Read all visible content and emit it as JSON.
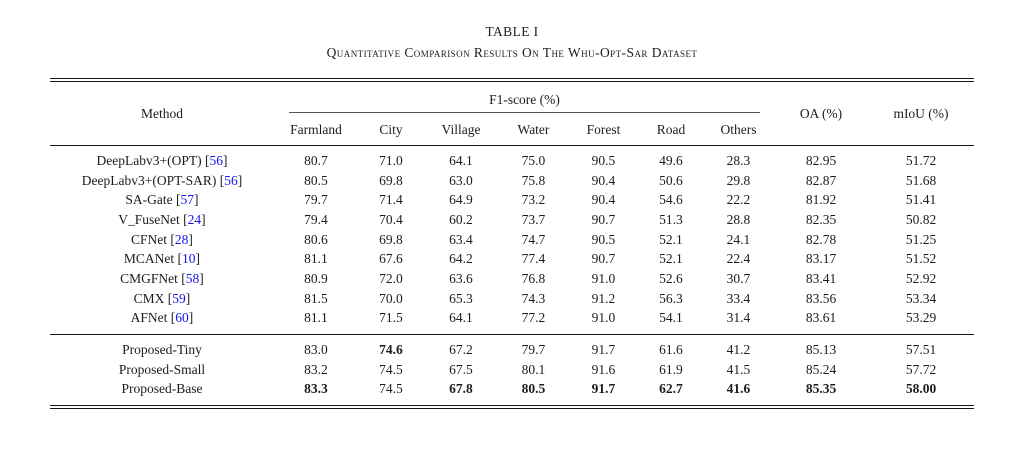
{
  "caption": {
    "number": "TABLE I",
    "title": "Quantitative Comparison Results On The Whu-Opt-Sar Dataset"
  },
  "colors": {
    "text": "#1c1c1c",
    "citation_link": "#1515ef",
    "rule": "#161616"
  },
  "columns": {
    "method": "Method",
    "f1_group": "F1-score (%)",
    "f1_subcolumns": [
      "Farmland",
      "City",
      "Village",
      "Water",
      "Forest",
      "Road",
      "Others"
    ],
    "oa": "OA (%)",
    "miou": "mIoU (%)"
  },
  "groups": [
    {
      "name": "baselines",
      "rows": [
        {
          "method": "DeepLabv3+(OPT)",
          "citation": "56",
          "values": [
            "80.7",
            "71.0",
            "64.1",
            "75.0",
            "90.5",
            "49.6",
            "28.3",
            "82.95",
            "51.72"
          ],
          "bold": []
        },
        {
          "method": "DeepLabv3+(OPT-SAR)",
          "citation": "56",
          "values": [
            "80.5",
            "69.8",
            "63.0",
            "75.8",
            "90.4",
            "50.6",
            "29.8",
            "82.87",
            "51.68"
          ],
          "bold": []
        },
        {
          "method": "SA-Gate",
          "citation": "57",
          "values": [
            "79.7",
            "71.4",
            "64.9",
            "73.2",
            "90.4",
            "54.6",
            "22.2",
            "81.92",
            "51.41"
          ],
          "bold": []
        },
        {
          "method": "V_FuseNet",
          "citation": "24",
          "values": [
            "79.4",
            "70.4",
            "60.2",
            "73.7",
            "90.7",
            "51.3",
            "28.8",
            "82.35",
            "50.82"
          ],
          "bold": []
        },
        {
          "method": "CFNet",
          "citation": "28",
          "values": [
            "80.6",
            "69.8",
            "63.4",
            "74.7",
            "90.5",
            "52.1",
            "24.1",
            "82.78",
            "51.25"
          ],
          "bold": []
        },
        {
          "method": "MCANet",
          "citation": "10",
          "values": [
            "81.1",
            "67.6",
            "64.2",
            "77.4",
            "90.7",
            "52.1",
            "22.4",
            "83.17",
            "51.52"
          ],
          "bold": []
        },
        {
          "method": "CMGFNet",
          "citation": "58",
          "values": [
            "80.9",
            "72.0",
            "63.6",
            "76.8",
            "91.0",
            "52.6",
            "30.7",
            "83.41",
            "52.92"
          ],
          "bold": []
        },
        {
          "method": "CMX",
          "citation": "59",
          "values": [
            "81.5",
            "70.0",
            "65.3",
            "74.3",
            "91.2",
            "56.3",
            "33.4",
            "83.56",
            "53.34"
          ],
          "bold": []
        },
        {
          "method": "AFNet",
          "citation": "60",
          "values": [
            "81.1",
            "71.5",
            "64.1",
            "77.2",
            "91.0",
            "54.1",
            "31.4",
            "83.61",
            "53.29"
          ],
          "bold": []
        }
      ]
    },
    {
      "name": "proposed",
      "rows": [
        {
          "method": "Proposed-Tiny",
          "citation": null,
          "values": [
            "83.0",
            "74.6",
            "67.2",
            "79.7",
            "91.7",
            "61.6",
            "41.2",
            "85.13",
            "57.51"
          ],
          "bold": [
            1
          ]
        },
        {
          "method": "Proposed-Small",
          "citation": null,
          "values": [
            "83.2",
            "74.5",
            "67.5",
            "80.1",
            "91.6",
            "61.9",
            "41.5",
            "85.24",
            "57.72"
          ],
          "bold": []
        },
        {
          "method": "Proposed-Base",
          "citation": null,
          "values": [
            "83.3",
            "74.5",
            "67.8",
            "80.5",
            "91.7",
            "62.7",
            "41.6",
            "85.35",
            "58.00"
          ],
          "bold": [
            0,
            2,
            3,
            4,
            5,
            6,
            7,
            8
          ]
        }
      ]
    }
  ]
}
